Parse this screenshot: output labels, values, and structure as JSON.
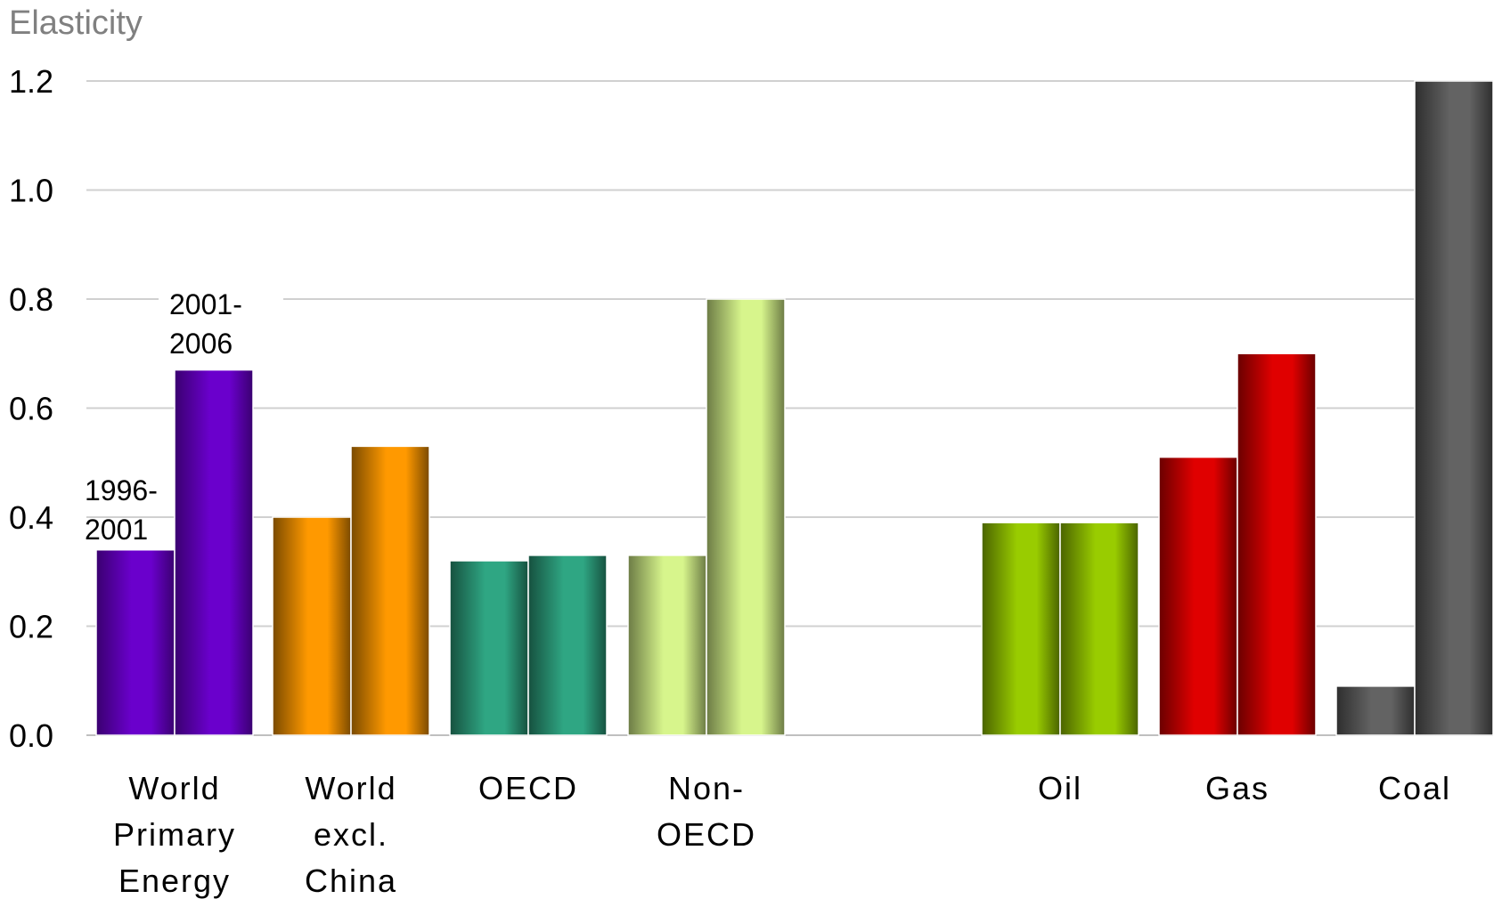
{
  "chart_data": {
    "type": "bar",
    "ylabel": "Elasticity",
    "ylim": [
      0,
      1.2
    ],
    "yticks": [
      "0.0",
      "0.2",
      "0.4",
      "0.6",
      "0.8",
      "1.0",
      "1.2"
    ],
    "grid": true,
    "period_labels": [
      {
        "lines": [
          "1996-",
          "2001"
        ]
      },
      {
        "lines": [
          "2001-",
          "2006"
        ]
      }
    ],
    "series": [
      {
        "values": [
          0.34,
          0.4,
          0.32,
          0.33,
          0.39,
          0.51,
          0.09
        ]
      },
      {
        "values": [
          0.67,
          0.53,
          0.33,
          0.8,
          0.39,
          0.7,
          1.2
        ]
      }
    ],
    "categories": [
      {
        "label": "World Primary Energy",
        "lines": [
          "World",
          "Primary",
          "Energy"
        ],
        "color": "#6a00cc",
        "dark": "#3a0070"
      },
      {
        "label": "World excl. China",
        "lines": [
          "World",
          "excl.",
          "China"
        ],
        "color": "#ff9900",
        "dark": "#7a4a00"
      },
      {
        "label": "OECD",
        "lines": [
          "OECD"
        ],
        "color": "#2fa683",
        "dark": "#16513f"
      },
      {
        "label": "Non-OECD",
        "lines": [
          "Non-",
          "OECD"
        ],
        "color": "#d7f58c",
        "dark": "#6c7b45"
      },
      {
        "label": "Oil",
        "lines": [
          "Oil"
        ],
        "color": "#99cc00",
        "dark": "#4a6300"
      },
      {
        "label": "Gas",
        "lines": [
          "Gas"
        ],
        "color": "#e00000",
        "dark": "#6a0000"
      },
      {
        "label": "Coal",
        "lines": [
          "Coal"
        ],
        "color": "#636363",
        "dark": "#2e2e2e"
      }
    ]
  }
}
